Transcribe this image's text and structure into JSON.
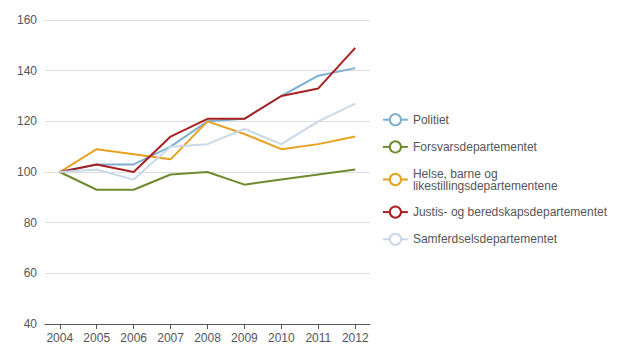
{
  "chart_data": {
    "type": "line",
    "x": [
      2004,
      2005,
      2006,
      2007,
      2008,
      2009,
      2010,
      2011,
      2012
    ],
    "series": [
      {
        "name": "Politiet",
        "color": "#7fb0d0",
        "values": [
          100,
          103,
          103,
          110,
          120,
          121,
          130,
          138,
          141
        ]
      },
      {
        "name": "Forsvarsdepartementet",
        "color": "#6e8c2f",
        "values": [
          100,
          93,
          93,
          99,
          100,
          95,
          97,
          99,
          101
        ]
      },
      {
        "name": "Helse, barne og\nlikestillingsdepartementene",
        "color": "#e8a020",
        "values": [
          100,
          109,
          107,
          105,
          120,
          115,
          109,
          111,
          114
        ]
      },
      {
        "name": "Justis- og beredskapsdepartementet",
        "color": "#a82020",
        "values": [
          100,
          103,
          100,
          114,
          121,
          121,
          130,
          133,
          149
        ]
      },
      {
        "name": "Samferdselsdepartementet",
        "color": "#c8d8e8",
        "values": [
          100,
          101,
          97,
          110,
          111,
          117,
          111,
          120,
          127
        ]
      }
    ],
    "xlim": [
      2003.6,
      2012.4
    ],
    "xticks": [
      2004,
      2005,
      2006,
      2007,
      2008,
      2009,
      2010,
      2011,
      2012
    ],
    "ylim": [
      40,
      160
    ],
    "yticks": [
      40,
      60,
      80,
      100,
      120,
      140,
      160
    ],
    "grid": true,
    "legend": "right"
  }
}
